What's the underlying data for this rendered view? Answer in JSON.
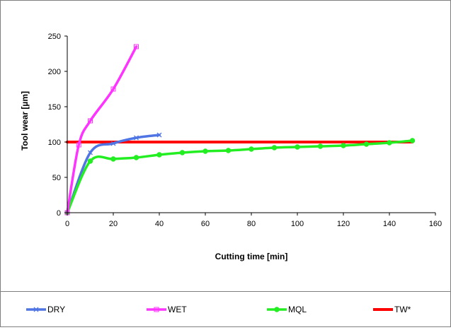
{
  "chart_data": {
    "type": "line",
    "title": "",
    "xlabel": "Cutting time [min]",
    "ylabel": "Tool wear [µm]",
    "xlim": [
      0,
      160
    ],
    "ylim": [
      0,
      250
    ],
    "x_ticks": [
      0,
      20,
      40,
      60,
      80,
      100,
      120,
      140,
      160
    ],
    "y_ticks": [
      0,
      50,
      100,
      150,
      200,
      250
    ],
    "grid": false,
    "legend_position": "bottom",
    "series": [
      {
        "name": "DRY",
        "color": "#4f74e3",
        "marker": "x",
        "x": [
          0,
          10,
          20,
          30,
          40
        ],
        "y": [
          0,
          85,
          98,
          106,
          110
        ]
      },
      {
        "name": "WET",
        "color": "#ff33ff",
        "marker": "square",
        "x": [
          0,
          5,
          10,
          20,
          30
        ],
        "y": [
          0,
          96,
          130,
          175,
          235
        ]
      },
      {
        "name": "MQL",
        "color": "#22ee22",
        "marker": "circle",
        "x": [
          0,
          10,
          20,
          30,
          40,
          50,
          60,
          70,
          80,
          90,
          100,
          110,
          120,
          130,
          140,
          150
        ],
        "y": [
          0,
          73,
          76,
          78,
          82,
          85,
          87,
          88,
          90,
          92,
          93,
          94,
          95,
          97,
          99,
          102
        ]
      },
      {
        "name": "TW*",
        "color": "#ff0000",
        "marker": "none",
        "x": [
          0,
          150
        ],
        "y": [
          100,
          100
        ]
      }
    ]
  }
}
